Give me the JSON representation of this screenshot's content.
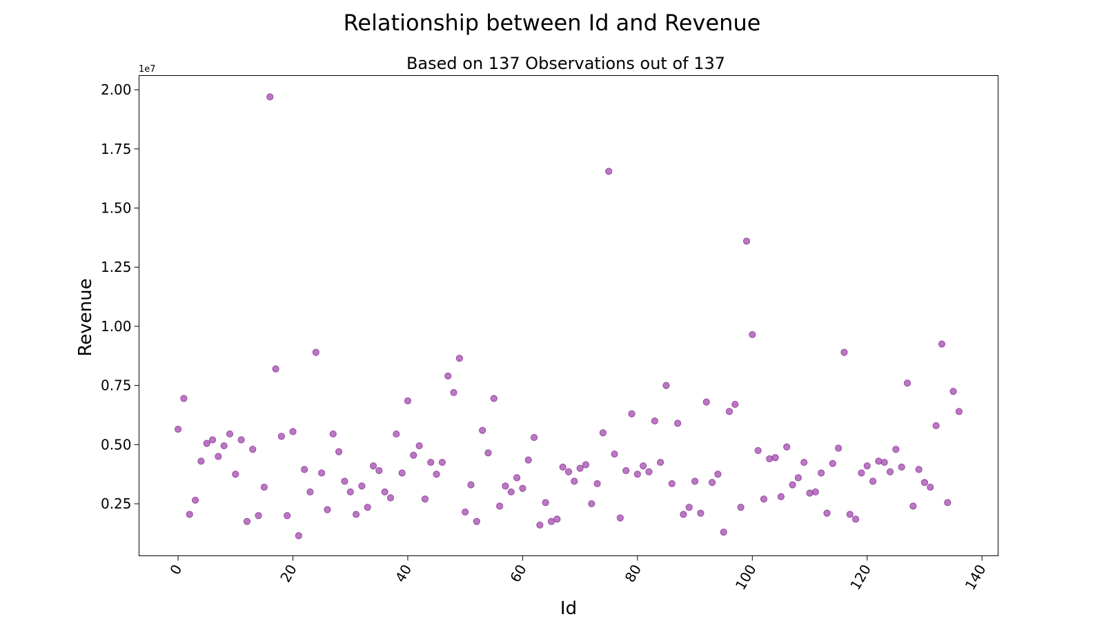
{
  "chart_data": {
    "type": "scatter",
    "title": "Relationship between Id and Revenue",
    "subtitle": "Based on 137 Observations out of 137",
    "xlabel": "Id",
    "ylabel": "Revenue",
    "y_offset_label": "1e7",
    "xlim": [
      -6.8,
      142.8
    ],
    "ylim": [
      0.03,
      2.06
    ],
    "x_ticks": [
      0,
      20,
      40,
      60,
      80,
      100,
      120,
      140
    ],
    "x_tick_labels": [
      "0",
      "20",
      "40",
      "60",
      "80",
      "100",
      "120",
      "140"
    ],
    "y_ticks": [
      0.25,
      0.5,
      0.75,
      1.0,
      1.25,
      1.5,
      1.75,
      2.0
    ],
    "y_tick_labels": [
      "0.25",
      "0.50",
      "0.75",
      "1.00",
      "1.25",
      "1.50",
      "1.75",
      "2.00"
    ],
    "grid": false,
    "point_color": "#9b3ea6",
    "x": [
      0,
      1,
      2,
      3,
      4,
      5,
      6,
      7,
      8,
      9,
      10,
      11,
      12,
      13,
      14,
      15,
      16,
      17,
      18,
      19,
      20,
      21,
      22,
      23,
      24,
      25,
      26,
      27,
      28,
      29,
      30,
      31,
      32,
      33,
      34,
      35,
      36,
      37,
      38,
      39,
      40,
      41,
      42,
      43,
      44,
      45,
      46,
      47,
      48,
      49,
      50,
      51,
      52,
      53,
      54,
      55,
      56,
      57,
      58,
      59,
      60,
      61,
      62,
      63,
      64,
      65,
      66,
      67,
      68,
      69,
      70,
      71,
      72,
      73,
      74,
      75,
      76,
      77,
      78,
      79,
      80,
      81,
      82,
      83,
      84,
      85,
      86,
      87,
      88,
      89,
      90,
      91,
      92,
      93,
      94,
      95,
      96,
      97,
      98,
      99,
      100,
      101,
      102,
      103,
      104,
      105,
      106,
      107,
      108,
      109,
      110,
      111,
      112,
      113,
      114,
      115,
      116,
      117,
      118,
      119,
      120,
      121,
      122,
      123,
      124,
      125,
      126,
      127,
      128,
      129,
      130,
      131,
      132,
      133,
      134,
      135,
      136
    ],
    "y": [
      0.565,
      0.695,
      0.205,
      0.265,
      0.43,
      0.505,
      0.52,
      0.45,
      0.495,
      0.545,
      0.375,
      0.52,
      0.175,
      0.48,
      0.2,
      0.32,
      1.97,
      0.82,
      0.535,
      0.2,
      0.555,
      0.115,
      0.395,
      0.3,
      0.89,
      0.38,
      0.225,
      0.545,
      0.47,
      0.345,
      0.3,
      0.205,
      0.325,
      0.235,
      0.41,
      0.39,
      0.3,
      0.275,
      0.545,
      0.38,
      0.685,
      0.455,
      0.495,
      0.27,
      0.425,
      0.375,
      0.425,
      0.79,
      0.72,
      0.865,
      0.215,
      0.33,
      0.175,
      0.56,
      0.465,
      0.695,
      0.24,
      0.325,
      0.3,
      0.36,
      0.315,
      0.435,
      0.53,
      0.16,
      0.255,
      0.175,
      0.185,
      0.405,
      0.385,
      0.345,
      0.4,
      0.415,
      0.25,
      0.335,
      0.55,
      1.655,
      0.46,
      0.19,
      0.39,
      0.63,
      0.375,
      0.41,
      0.385,
      0.6,
      0.425,
      0.75,
      0.335,
      0.59,
      0.205,
      0.235,
      0.345,
      0.21,
      0.68,
      0.34,
      0.375,
      0.13,
      0.64,
      0.67,
      0.235,
      1.36,
      0.965,
      0.475,
      0.27,
      0.44,
      0.445,
      0.28,
      0.49,
      0.33,
      0.36,
      0.425,
      0.295,
      0.3,
      0.38,
      0.21,
      0.42,
      0.485,
      0.89,
      0.205,
      0.185,
      0.38,
      0.41,
      0.345,
      0.43,
      0.425,
      0.385,
      0.48,
      0.405,
      0.76,
      0.24,
      0.395,
      0.34,
      0.32,
      0.58,
      0.925,
      0.255,
      0.725,
      0.64
    ]
  }
}
